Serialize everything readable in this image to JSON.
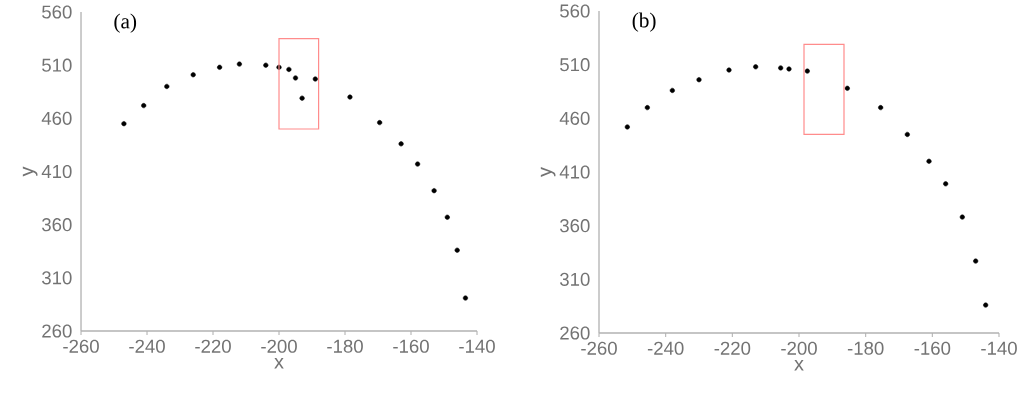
{
  "chart_data": [
    {
      "type": "scatter",
      "title": "(a)",
      "xlabel": "x",
      "ylabel": "y",
      "xlim": [
        -260,
        -140
      ],
      "ylim": [
        260,
        560
      ],
      "xticks": [
        -260,
        -240,
        -220,
        -200,
        -180,
        -160,
        -140
      ],
      "yticks": [
        260,
        310,
        360,
        410,
        460,
        510,
        560
      ],
      "series": [
        {
          "color": "#000000",
          "x": [
            -247,
            -241,
            -234,
            -226,
            -218,
            -212,
            -204,
            -200,
            -197,
            -189,
            -178.5,
            -169.5,
            -163,
            -158,
            -153,
            -149,
            -146,
            -143.5,
            -195,
            -193
          ],
          "values": [
            455,
            472,
            490,
            501,
            508,
            511,
            510,
            508,
            506,
            497,
            480,
            456,
            436,
            417,
            392,
            367,
            336,
            291,
            498,
            479
          ]
        }
      ]
    },
    {
      "type": "scatter",
      "title": "(b)",
      "xlabel": "x",
      "ylabel": "y",
      "xlim": [
        -260,
        -140
      ],
      "ylim": [
        260,
        560
      ],
      "xticks": [
        -260,
        -240,
        -220,
        -200,
        -180,
        -160,
        -140
      ],
      "yticks": [
        260,
        310,
        360,
        410,
        460,
        510,
        560
      ],
      "series": [
        {
          "color": "#000000",
          "x": [
            -251.5,
            -245.5,
            -238,
            -230,
            -221,
            -213,
            -205.5,
            -203,
            -197.5,
            -185.5,
            -175.5,
            -167.5,
            -161,
            -156,
            -151,
            -147,
            -144
          ],
          "values": [
            452,
            470,
            486,
            496,
            505,
            508,
            507,
            506,
            504,
            488,
            470,
            445,
            420,
            399,
            368,
            327,
            286
          ]
        }
      ]
    }
  ]
}
